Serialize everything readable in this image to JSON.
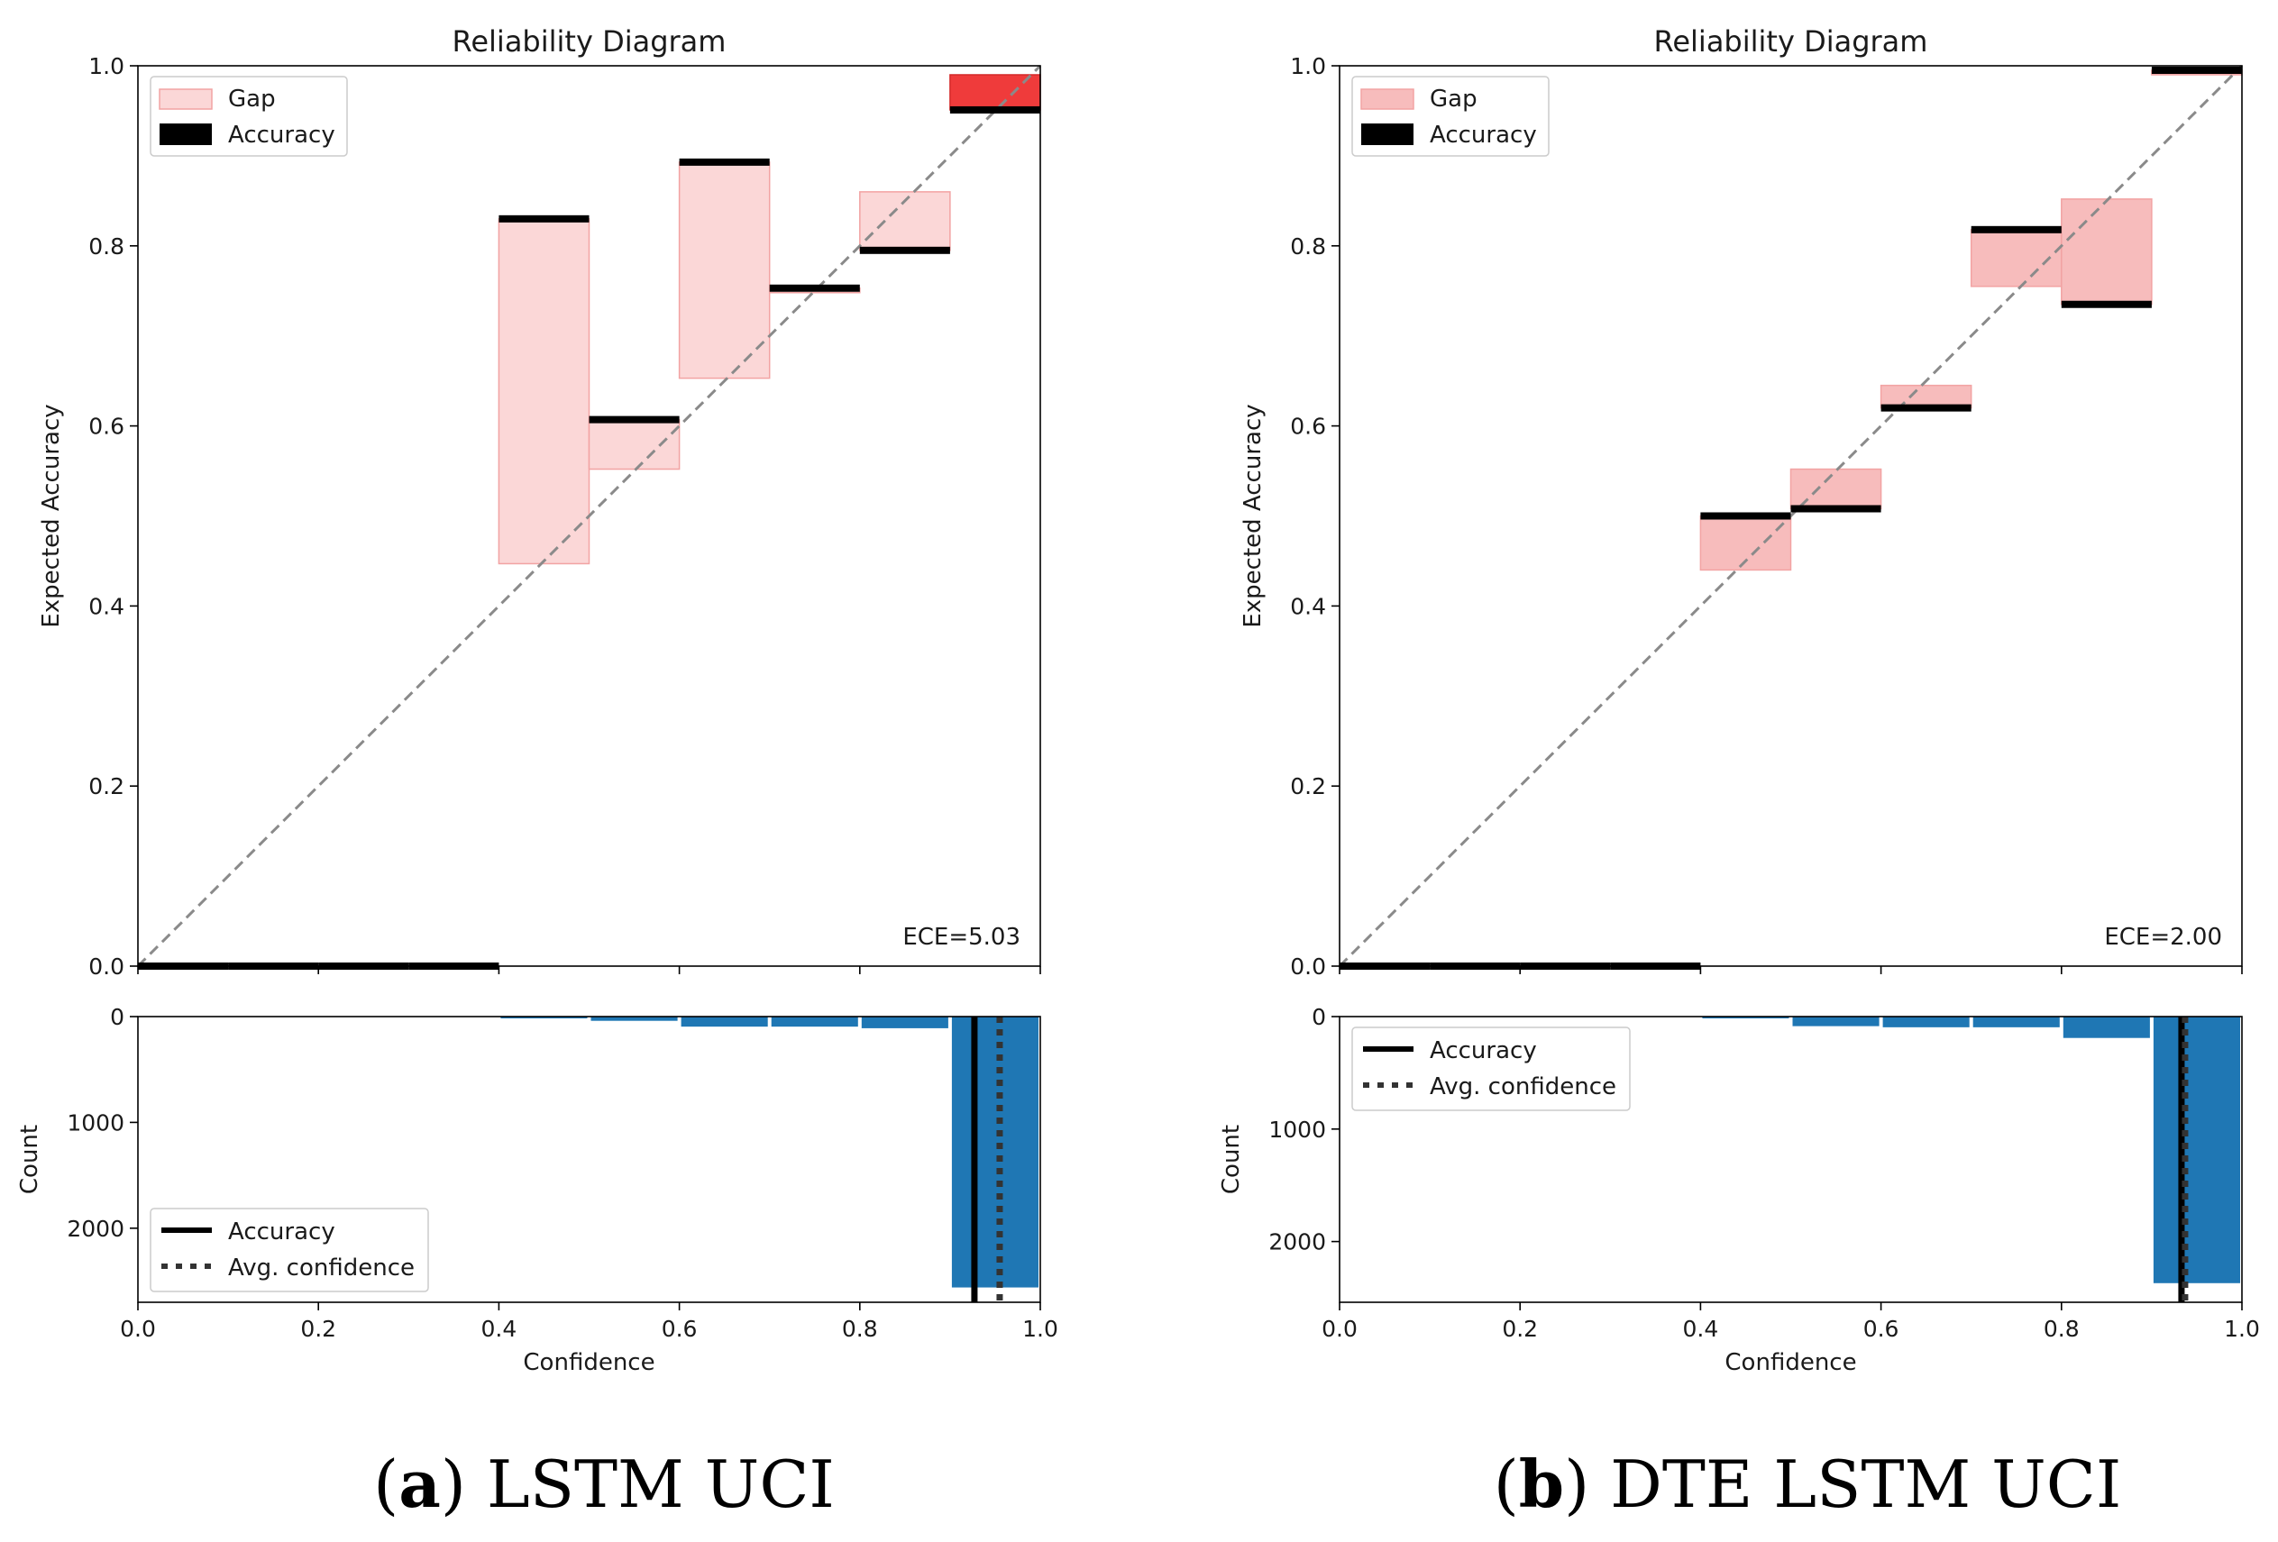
{
  "chart_data": [
    {
      "type": "bar",
      "panel": "a",
      "caption_letter": "a",
      "caption_text": "LSTM UCI",
      "reliability": {
        "title": "Reliability Diagram",
        "xlabel": "",
        "ylabel": "Expected Accuracy",
        "xlim": [
          0,
          1
        ],
        "ylim": [
          0,
          1
        ],
        "yticks": [
          "0.0",
          "0.2",
          "0.4",
          "0.6",
          "0.8",
          "1.0"
        ],
        "legend": {
          "gap_label": "Gap",
          "accuracy_label": "Accuracy",
          "position": "upper-left"
        },
        "ece_label": "ECE=5.03",
        "bins": [
          {
            "x0": 0.0,
            "x1": 0.1,
            "accuracy": 0.0,
            "confidence": 0.0
          },
          {
            "x0": 0.1,
            "x1": 0.2,
            "accuracy": 0.0,
            "confidence": 0.0
          },
          {
            "x0": 0.2,
            "x1": 0.3,
            "accuracy": 0.0,
            "confidence": 0.0
          },
          {
            "x0": 0.3,
            "x1": 0.4,
            "accuracy": 0.0,
            "confidence": 0.0
          },
          {
            "x0": 0.4,
            "x1": 0.5,
            "accuracy": 0.83,
            "confidence": 0.447
          },
          {
            "x0": 0.5,
            "x1": 0.6,
            "accuracy": 0.607,
            "confidence": 0.552
          },
          {
            "x0": 0.6,
            "x1": 0.7,
            "accuracy": 0.893,
            "confidence": 0.653
          },
          {
            "x0": 0.7,
            "x1": 0.8,
            "accuracy": 0.753,
            "confidence": 0.748
          },
          {
            "x0": 0.8,
            "x1": 0.9,
            "accuracy": 0.795,
            "confidence": 0.86
          },
          {
            "x0": 0.9,
            "x1": 1.0,
            "accuracy": 0.951,
            "confidence": 0.99
          }
        ],
        "gap_colors": [
          "#fbd7d7",
          "#fbd7d7",
          "#fbd7d7",
          "#fbd7d7",
          "#fbd7d7",
          "#fbd7d7",
          "#fbd7d7",
          "#fbd7d7",
          "#fbd7d7",
          "#ef3b3b"
        ]
      },
      "histogram": {
        "xlabel": "Confidence",
        "ylabel": "Count",
        "xticks": [
          "0.0",
          "0.2",
          "0.4",
          "0.6",
          "0.8",
          "1.0"
        ],
        "yticks": [
          "0",
          "1000",
          "2000"
        ],
        "ytick_values": [
          0,
          1000,
          2000
        ],
        "ymax": 2700,
        "counts": [
          0,
          0,
          0,
          0,
          5,
          40,
          95,
          95,
          110,
          2560
        ],
        "accuracy_line": 0.927,
        "avg_confidence_line": 0.955,
        "legend": {
          "accuracy_label": "Accuracy",
          "avg_confidence_label": "Avg. confidence",
          "position": "lower-left"
        }
      }
    },
    {
      "type": "bar",
      "panel": "b",
      "caption_letter": "b",
      "caption_text": "DTE LSTM UCI",
      "reliability": {
        "title": "Reliability Diagram",
        "xlabel": "",
        "ylabel": "Expected Accuracy",
        "xlim": [
          0,
          1
        ],
        "ylim": [
          0,
          1
        ],
        "yticks": [
          "0.0",
          "0.2",
          "0.4",
          "0.6",
          "0.8",
          "1.0"
        ],
        "legend": {
          "gap_label": "Gap",
          "accuracy_label": "Accuracy",
          "position": "upper-left"
        },
        "ece_label": "ECE=2.00",
        "bins": [
          {
            "x0": 0.0,
            "x1": 0.1,
            "accuracy": 0.0,
            "confidence": 0.0
          },
          {
            "x0": 0.1,
            "x1": 0.2,
            "accuracy": 0.0,
            "confidence": 0.0
          },
          {
            "x0": 0.2,
            "x1": 0.3,
            "accuracy": 0.0,
            "confidence": 0.0
          },
          {
            "x0": 0.3,
            "x1": 0.4,
            "accuracy": 0.0,
            "confidence": 0.0
          },
          {
            "x0": 0.4,
            "x1": 0.5,
            "accuracy": 0.5,
            "confidence": 0.44
          },
          {
            "x0": 0.5,
            "x1": 0.6,
            "accuracy": 0.508,
            "confidence": 0.552
          },
          {
            "x0": 0.6,
            "x1": 0.7,
            "accuracy": 0.62,
            "confidence": 0.645
          },
          {
            "x0": 0.7,
            "x1": 0.8,
            "accuracy": 0.818,
            "confidence": 0.755
          },
          {
            "x0": 0.8,
            "x1": 0.9,
            "accuracy": 0.735,
            "confidence": 0.852
          },
          {
            "x0": 0.9,
            "x1": 1.0,
            "accuracy": 0.995,
            "confidence": 0.99
          }
        ],
        "gap_colors": [
          "#f7bcbc",
          "#f7bcbc",
          "#f7bcbc",
          "#f7bcbc",
          "#f7bcbc",
          "#f7bcbc",
          "#f7bcbc",
          "#f7bcbc",
          "#f7bcbc",
          "#f7bcbc"
        ]
      },
      "histogram": {
        "xlabel": "Confidence",
        "ylabel": "Count",
        "xticks": [
          "0.0",
          "0.2",
          "0.4",
          "0.6",
          "0.8",
          "1.0"
        ],
        "yticks": [
          "0",
          "1000",
          "2000"
        ],
        "ytick_values": [
          0,
          1000,
          2000
        ],
        "ymax": 2540,
        "counts": [
          0,
          0,
          0,
          0,
          5,
          85,
          95,
          95,
          190,
          2370
        ],
        "accuracy_line": 0.933,
        "avg_confidence_line": 0.937,
        "legend": {
          "accuracy_label": "Accuracy",
          "avg_confidence_label": "Avg. confidence",
          "position": "upper-left"
        }
      }
    }
  ]
}
